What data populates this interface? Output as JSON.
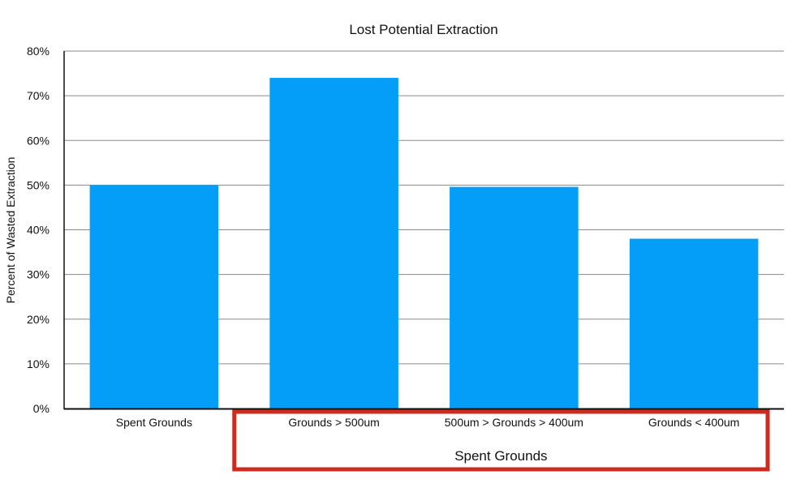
{
  "chart_data": {
    "type": "bar",
    "title": "Lost Potential Extraction",
    "xlabel": "",
    "ylabel": "Percent of Wasted Extraction",
    "categories": [
      "Spent Grounds",
      "Grounds > 500um",
      "500um > Grounds > 400um",
      "Grounds < 400um"
    ],
    "values": [
      50,
      74,
      49.6,
      38
    ],
    "ylim": [
      0,
      80
    ],
    "yticks": [
      "0%",
      "10%",
      "20%",
      "30%",
      "40%",
      "50%",
      "60%",
      "70%",
      "80%"
    ],
    "grid": true,
    "bar_color": "#049ef8",
    "annotations": [
      {
        "label": "Spent Grounds",
        "spans_categories": [
          1,
          2,
          3
        ],
        "style": "box",
        "color": "#cc2b1e"
      }
    ]
  }
}
